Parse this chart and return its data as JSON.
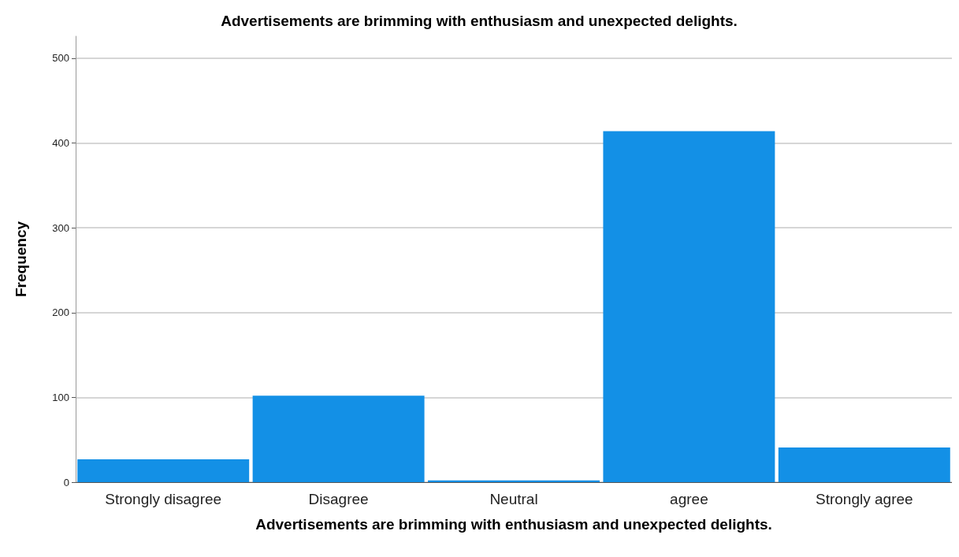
{
  "chart_data": {
    "type": "bar",
    "title": "Advertisements are brimming with enthusiasm and unexpected delights.",
    "xlabel": "Advertisements are brimming with enthusiasm and unexpected delights.",
    "ylabel": "Frequency",
    "categories": [
      "Strongly disagree",
      "Disagree",
      "Neutral",
      "agree",
      "Strongly agree"
    ],
    "values": [
      27,
      102,
      2,
      414,
      41
    ],
    "color": "#1390e6",
    "ylim": [
      0,
      526
    ],
    "yticks": [
      0,
      100,
      200,
      300,
      400,
      500
    ],
    "grid": "y"
  }
}
